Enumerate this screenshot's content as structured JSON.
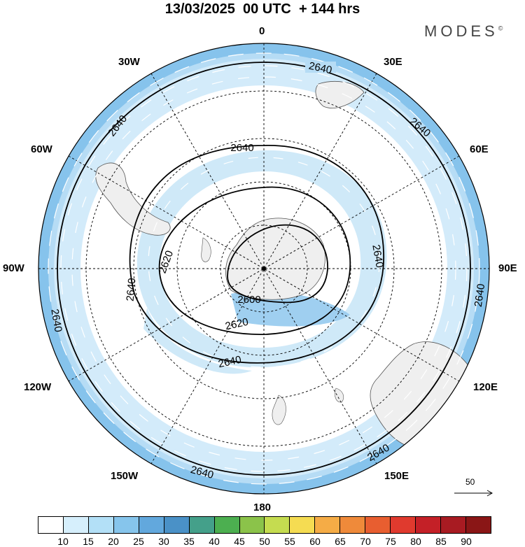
{
  "title": "13/03/2025  00 UTC  + 144 hrs",
  "brand": "MODES",
  "brand_mark": "©",
  "longitude_labels": [
    "0",
    "30E",
    "60E",
    "90E",
    "120E",
    "150E",
    "180",
    "150W",
    "120W",
    "90W",
    "60W",
    "30W"
  ],
  "contour_labels": {
    "outer": "2640",
    "mid": "2620",
    "inner": "2600"
  },
  "reference_vector": {
    "label": "50"
  },
  "colorbar": {
    "labels": [
      "10",
      "15",
      "20",
      "25",
      "30",
      "35",
      "40",
      "45",
      "50",
      "55",
      "60",
      "65",
      "70",
      "75",
      "80",
      "85",
      "90"
    ],
    "colors": [
      "#ffffff",
      "#d6effc",
      "#b3e0f7",
      "#86c5ec",
      "#62a8dd",
      "#4a91c7",
      "#44a08a",
      "#4caf50",
      "#8bc34a",
      "#c5dc50",
      "#f5dc52",
      "#f5ac46",
      "#ef8a3a",
      "#e85e30",
      "#e03a2e",
      "#c42027",
      "#a81b22",
      "#8a1616"
    ]
  },
  "colors": {
    "land": "#efefef",
    "wind_light": "#cfe9f8",
    "wind_mid": "#a9d4f2",
    "wind_strong": "#7ab8e6"
  }
}
